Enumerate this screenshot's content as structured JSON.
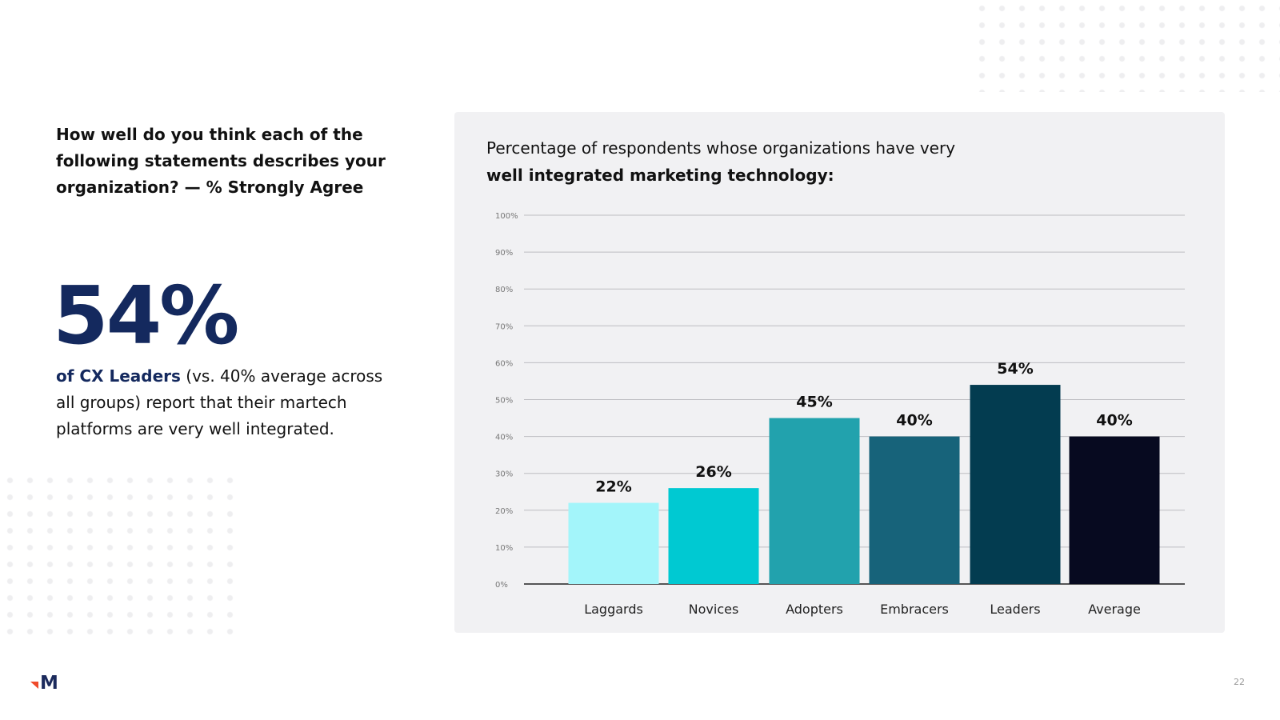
{
  "question": "How well do you think each of the following statements describes your organization? — % Strongly Agree",
  "highlight": {
    "big_stat": "54%",
    "bold": "of CX Leaders",
    "rest": " (vs. 40% average across all groups) report that their martech platforms are very well integrated."
  },
  "page_number": "22",
  "logo_text": "M",
  "chart_data": {
    "type": "bar",
    "title_line1": "Percentage of respondents whose organizations have very",
    "title_line2": "well integrated marketing technology:",
    "categories": [
      "Laggards",
      "Novices",
      "Adopters",
      "Embracers",
      "Leaders",
      "Average"
    ],
    "values": [
      22,
      26,
      45,
      40,
      54,
      40
    ],
    "data_labels": [
      "22%",
      "26%",
      "45%",
      "40%",
      "54%",
      "40%"
    ],
    "colors": [
      "#a3f5fa",
      "#00c9d2",
      "#22a2ad",
      "#17637a",
      "#033c50",
      "#070a20"
    ],
    "yticks": [
      "0%",
      "10%",
      "20%",
      "30%",
      "40%",
      "50%",
      "60%",
      "70%",
      "80%",
      "90%",
      "100%"
    ],
    "ylim": [
      0,
      100
    ],
    "xlabel": "",
    "ylabel": "",
    "grid": true
  }
}
